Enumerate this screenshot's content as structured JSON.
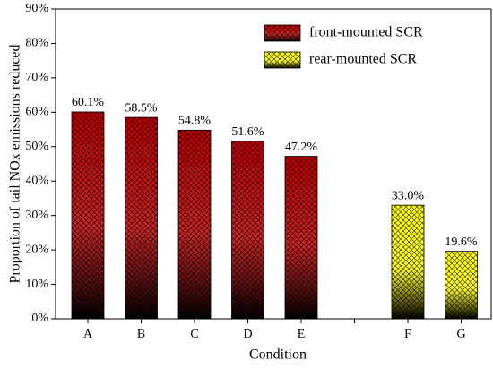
{
  "chart_data": {
    "type": "bar",
    "x_label": "Condition",
    "y_label": "Proportion of tail NOx emissions reduced",
    "categories": [
      "A",
      "B",
      "C",
      "D",
      "E",
      null,
      "F",
      "G"
    ],
    "series": [
      {
        "name": "front-mounted SCR",
        "color": "#c00000",
        "values": [
          60.1,
          58.5,
          54.8,
          51.6,
          47.2,
          null,
          null,
          null
        ],
        "value_labels": [
          "60.1%",
          "58.5%",
          "54.8%",
          "51.6%",
          "47.2%",
          null,
          null,
          null
        ]
      },
      {
        "name": "rear-mounted SCR",
        "color": "#ffff00",
        "values": [
          null,
          null,
          null,
          null,
          null,
          null,
          33.0,
          19.6
        ],
        "value_labels": [
          null,
          null,
          null,
          null,
          null,
          null,
          "33.0%",
          "19.6%"
        ]
      }
    ],
    "ylim": [
      0,
      90
    ],
    "yticks": [
      {
        "value": 0,
        "label": "0%"
      },
      {
        "value": 10,
        "label": "10%"
      },
      {
        "value": 20,
        "label": "20%"
      },
      {
        "value": 30,
        "label": "30%"
      },
      {
        "value": 40,
        "label": "40%"
      },
      {
        "value": 50,
        "label": "50%"
      },
      {
        "value": 60,
        "label": "60%"
      },
      {
        "value": 70,
        "label": "70%"
      },
      {
        "value": 80,
        "label": "80%"
      },
      {
        "value": 90,
        "label": "90%"
      }
    ],
    "legend": "upper right"
  }
}
